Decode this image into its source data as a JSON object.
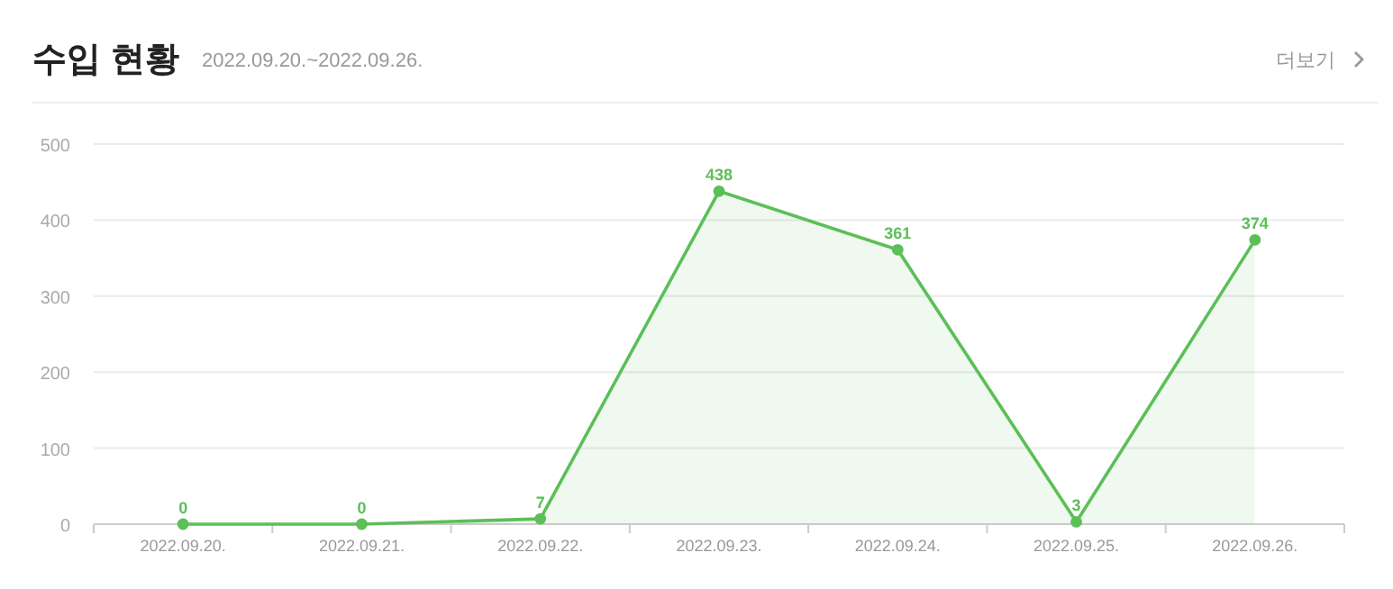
{
  "chart_data": {
    "type": "area",
    "title": "수입 현황",
    "subtitle": "2022.09.20.~2022.09.26.",
    "annotations": [
      "더보기"
    ],
    "categories": [
      "2022.09.20.",
      "2022.09.21.",
      "2022.09.22.",
      "2022.09.23.",
      "2022.09.24.",
      "2022.09.25.",
      "2022.09.26."
    ],
    "series": [
      {
        "color": "#5cbf58",
        "values": [
          0,
          0,
          7,
          438,
          361,
          3,
          374
        ]
      }
    ],
    "ylim": [
      0,
      500
    ],
    "yticks": [
      0,
      100,
      200,
      300,
      400,
      500
    ],
    "grid": "y",
    "data_labels": true,
    "marker": "circle",
    "line_style": "solid"
  }
}
